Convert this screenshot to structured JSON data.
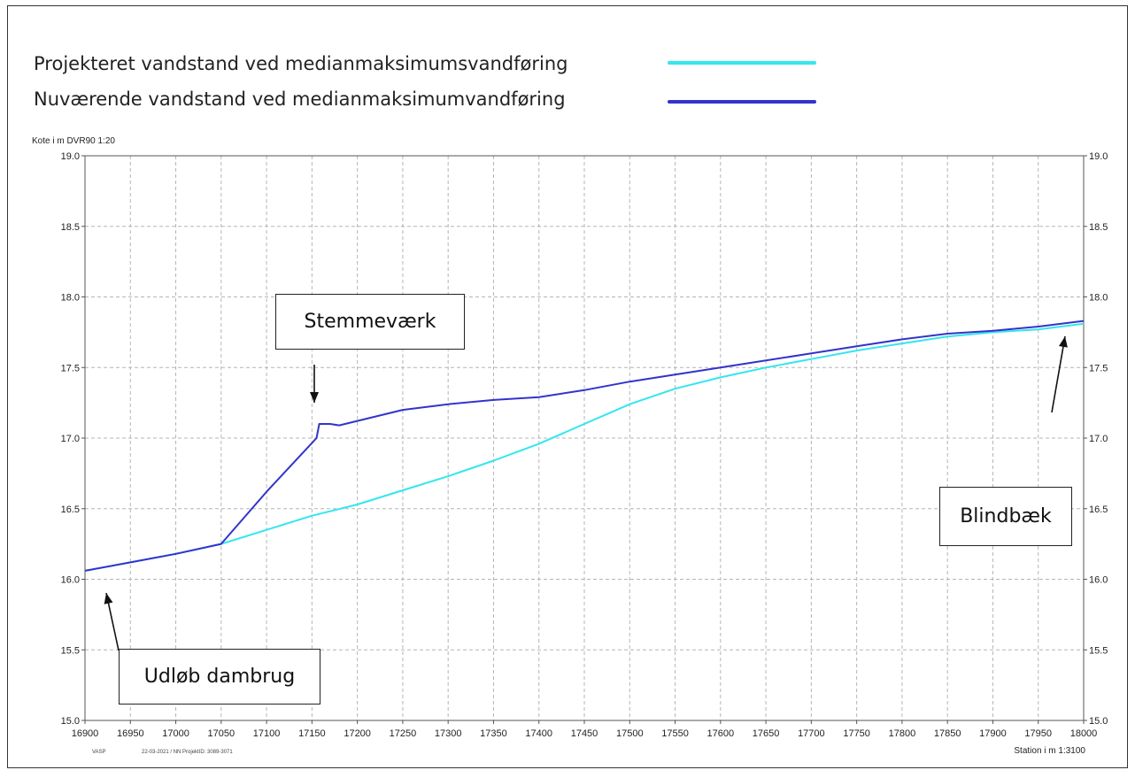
{
  "legend": [
    {
      "label": "Projekteret vandstand ved medianmaksimumsvandføring",
      "color": "#33e6ee"
    },
    {
      "label": "Nuværende vandstand ved medianmaksimumvandføring",
      "color": "#3333cc"
    }
  ],
  "annotations": {
    "stemmevaerk": "Stemmeværk",
    "udlob": "Udløb dambrug",
    "blindbaek": "Blindbæk"
  },
  "footer": {
    "left_code": "VASP",
    "left_info": "22-03-2021 / NN  ProjektID: 3089-3071"
  },
  "chart_data": {
    "type": "line",
    "ylabel": "Kote i m DVR90 1:20",
    "xlabel": "Station i m  1:3100",
    "xlim": [
      16900,
      18000
    ],
    "ylim": [
      15.0,
      19.0
    ],
    "x_ticks": [
      16900,
      16950,
      17000,
      17050,
      17100,
      17150,
      17200,
      17250,
      17300,
      17350,
      17400,
      17450,
      17500,
      17550,
      17600,
      17650,
      17700,
      17750,
      17800,
      17850,
      17900,
      17950,
      18000
    ],
    "y_ticks": [
      "15.0",
      "15.5",
      "16.0",
      "16.5",
      "17.0",
      "17.5",
      "18.0",
      "18.5",
      "19.0"
    ],
    "grid": true,
    "series": [
      {
        "name": "Projekteret vandstand ved medianmaksimumsvandføring",
        "color": "#33e6ee",
        "points": [
          [
            16900,
            16.06
          ],
          [
            16950,
            16.12
          ],
          [
            17000,
            16.18
          ],
          [
            17050,
            16.25
          ],
          [
            17100,
            16.35
          ],
          [
            17150,
            16.45
          ],
          [
            17200,
            16.53
          ],
          [
            17250,
            16.63
          ],
          [
            17300,
            16.73
          ],
          [
            17350,
            16.84
          ],
          [
            17400,
            16.96
          ],
          [
            17450,
            17.1
          ],
          [
            17500,
            17.24
          ],
          [
            17550,
            17.35
          ],
          [
            17600,
            17.43
          ],
          [
            17650,
            17.5
          ],
          [
            17700,
            17.56
          ],
          [
            17750,
            17.62
          ],
          [
            17800,
            17.67
          ],
          [
            17850,
            17.72
          ],
          [
            17900,
            17.75
          ],
          [
            17950,
            17.77
          ],
          [
            18000,
            17.81
          ]
        ]
      },
      {
        "name": "Nuværende vandstand ved medianmaksimumvandføring",
        "color": "#3333cc",
        "points": [
          [
            16900,
            16.06
          ],
          [
            16950,
            16.12
          ],
          [
            17000,
            16.18
          ],
          [
            17050,
            16.25
          ],
          [
            17100,
            16.62
          ],
          [
            17155,
            17.0
          ],
          [
            17158,
            17.1
          ],
          [
            17170,
            17.1
          ],
          [
            17180,
            17.09
          ],
          [
            17250,
            17.2
          ],
          [
            17300,
            17.24
          ],
          [
            17350,
            17.27
          ],
          [
            17400,
            17.29
          ],
          [
            17450,
            17.34
          ],
          [
            17500,
            17.4
          ],
          [
            17550,
            17.45
          ],
          [
            17600,
            17.5
          ],
          [
            17650,
            17.55
          ],
          [
            17700,
            17.6
          ],
          [
            17750,
            17.65
          ],
          [
            17800,
            17.7
          ],
          [
            17850,
            17.74
          ],
          [
            17900,
            17.76
          ],
          [
            17950,
            17.79
          ],
          [
            18000,
            17.83
          ]
        ]
      }
    ]
  }
}
